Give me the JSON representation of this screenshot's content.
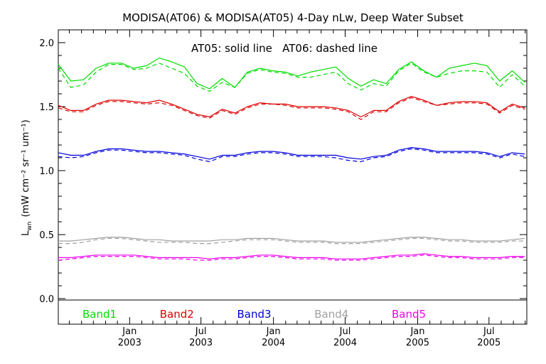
{
  "chart_data": {
    "type": "line",
    "title": "MODISA(AT06) & MODISA(AT05) 4-Day nLw, Deep Water Subset",
    "annotation": "AT05: solid line   AT06: dashed line",
    "ylabel": "L",
    "ylabel_subscript": "wn",
    "ylabel_units": "(mW cm⁻² sr⁻¹ um⁻¹)",
    "ylim": [
      -0.2,
      2.1
    ],
    "xlim": [
      "2002-07-04",
      "2005-10-05"
    ],
    "grid": false,
    "y_ticks": [
      0.0,
      0.5,
      1.0,
      1.5,
      2.0
    ],
    "y_tick_labels": [
      "0.0",
      "0.5",
      "1.0",
      "1.5",
      "2.0"
    ],
    "x_ticks": [
      {
        "date": "2003-01-01",
        "month": "Jan",
        "year": "2003"
      },
      {
        "date": "2003-07-01",
        "month": "Jul",
        "year": "2003"
      },
      {
        "date": "2004-01-01",
        "month": "Jan",
        "year": "2004"
      },
      {
        "date": "2004-07-01",
        "month": "Jul",
        "year": "2004"
      },
      {
        "date": "2005-01-01",
        "month": "Jan",
        "year": "2005"
      },
      {
        "date": "2005-07-01",
        "month": "Jul",
        "year": "2005"
      }
    ],
    "x": [
      "2002-07-04",
      "2002-08-05",
      "2002-09-06",
      "2002-10-08",
      "2002-11-09",
      "2002-12-11",
      "2003-01-12",
      "2003-02-13",
      "2003-03-17",
      "2003-04-18",
      "2003-05-20",
      "2003-06-21",
      "2003-07-23",
      "2003-08-24",
      "2003-09-25",
      "2003-10-27",
      "2003-11-28",
      "2003-12-30",
      "2004-01-31",
      "2004-03-03",
      "2004-04-04",
      "2004-05-06",
      "2004-06-07",
      "2004-07-09",
      "2004-08-10",
      "2004-09-11",
      "2004-10-13",
      "2004-11-14",
      "2004-12-16",
      "2005-01-17",
      "2005-02-18",
      "2005-03-22",
      "2005-04-23",
      "2005-05-25",
      "2005-06-26",
      "2005-07-28",
      "2005-08-29",
      "2005-09-30"
    ],
    "series": [
      {
        "name": "Band1",
        "sensor": "AT05",
        "style": "solid",
        "color": "#00dd00",
        "values": [
          1.83,
          1.7,
          1.71,
          1.8,
          1.84,
          1.84,
          1.8,
          1.82,
          1.88,
          1.85,
          1.81,
          1.68,
          1.64,
          1.72,
          1.65,
          1.77,
          1.8,
          1.78,
          1.77,
          1.74,
          1.77,
          1.79,
          1.81,
          1.72,
          1.66,
          1.71,
          1.68,
          1.79,
          1.85,
          1.78,
          1.73,
          1.8,
          1.82,
          1.84,
          1.82,
          1.7,
          1.78,
          1.69
        ]
      },
      {
        "name": "Band1",
        "sensor": "AT06",
        "style": "dashed",
        "color": "#00dd00",
        "values": [
          1.8,
          1.65,
          1.67,
          1.77,
          1.83,
          1.83,
          1.79,
          1.8,
          1.84,
          1.8,
          1.76,
          1.66,
          1.62,
          1.69,
          1.65,
          1.76,
          1.79,
          1.77,
          1.76,
          1.73,
          1.73,
          1.75,
          1.77,
          1.68,
          1.63,
          1.68,
          1.66,
          1.78,
          1.84,
          1.77,
          1.73,
          1.76,
          1.78,
          1.78,
          1.77,
          1.65,
          1.75,
          1.66
        ]
      },
      {
        "name": "Band2",
        "sensor": "AT05",
        "style": "solid",
        "color": "#dd0000",
        "values": [
          1.51,
          1.47,
          1.47,
          1.52,
          1.55,
          1.55,
          1.54,
          1.53,
          1.55,
          1.52,
          1.48,
          1.44,
          1.42,
          1.48,
          1.45,
          1.5,
          1.53,
          1.52,
          1.52,
          1.5,
          1.5,
          1.5,
          1.49,
          1.47,
          1.42,
          1.47,
          1.47,
          1.54,
          1.58,
          1.55,
          1.51,
          1.53,
          1.54,
          1.54,
          1.53,
          1.46,
          1.52,
          1.49
        ]
      },
      {
        "name": "Band2",
        "sensor": "AT06",
        "style": "dashed",
        "color": "#dd0000",
        "values": [
          1.49,
          1.46,
          1.46,
          1.51,
          1.54,
          1.54,
          1.53,
          1.52,
          1.53,
          1.51,
          1.47,
          1.43,
          1.41,
          1.47,
          1.44,
          1.49,
          1.52,
          1.52,
          1.51,
          1.49,
          1.49,
          1.49,
          1.48,
          1.46,
          1.4,
          1.46,
          1.46,
          1.53,
          1.57,
          1.54,
          1.51,
          1.52,
          1.53,
          1.53,
          1.52,
          1.45,
          1.51,
          1.48
        ]
      },
      {
        "name": "Band3",
        "sensor": "AT05",
        "style": "solid",
        "color": "#0000dd",
        "values": [
          1.14,
          1.12,
          1.12,
          1.15,
          1.17,
          1.17,
          1.16,
          1.15,
          1.15,
          1.14,
          1.13,
          1.11,
          1.09,
          1.12,
          1.12,
          1.14,
          1.15,
          1.15,
          1.14,
          1.12,
          1.12,
          1.12,
          1.12,
          1.1,
          1.09,
          1.11,
          1.12,
          1.16,
          1.18,
          1.17,
          1.15,
          1.15,
          1.15,
          1.15,
          1.14,
          1.11,
          1.14,
          1.13
        ]
      },
      {
        "name": "Band3",
        "sensor": "AT06",
        "style": "dashed",
        "color": "#0000dd",
        "values": [
          1.11,
          1.1,
          1.11,
          1.14,
          1.16,
          1.16,
          1.15,
          1.14,
          1.14,
          1.13,
          1.12,
          1.09,
          1.07,
          1.11,
          1.11,
          1.13,
          1.14,
          1.14,
          1.13,
          1.11,
          1.11,
          1.11,
          1.1,
          1.08,
          1.07,
          1.1,
          1.11,
          1.15,
          1.17,
          1.16,
          1.14,
          1.14,
          1.14,
          1.14,
          1.13,
          1.1,
          1.13,
          1.11
        ]
      },
      {
        "name": "Band4",
        "sensor": "AT05",
        "style": "solid",
        "color": "#a0a0a0",
        "values": [
          0.45,
          0.45,
          0.46,
          0.47,
          0.48,
          0.48,
          0.47,
          0.46,
          0.46,
          0.45,
          0.45,
          0.45,
          0.45,
          0.46,
          0.46,
          0.47,
          0.47,
          0.47,
          0.46,
          0.45,
          0.45,
          0.45,
          0.44,
          0.44,
          0.44,
          0.45,
          0.46,
          0.47,
          0.48,
          0.48,
          0.47,
          0.46,
          0.46,
          0.45,
          0.45,
          0.45,
          0.46,
          0.47
        ]
      },
      {
        "name": "Band4",
        "sensor": "AT06",
        "style": "dashed",
        "color": "#a0a0a0",
        "values": [
          0.43,
          0.43,
          0.44,
          0.46,
          0.47,
          0.47,
          0.46,
          0.45,
          0.44,
          0.44,
          0.44,
          0.43,
          0.43,
          0.44,
          0.45,
          0.46,
          0.46,
          0.46,
          0.45,
          0.44,
          0.44,
          0.44,
          0.43,
          0.43,
          0.43,
          0.44,
          0.45,
          0.46,
          0.47,
          0.47,
          0.46,
          0.45,
          0.45,
          0.44,
          0.44,
          0.44,
          0.45,
          0.45
        ]
      },
      {
        "name": "Band5",
        "sensor": "AT05",
        "style": "solid",
        "color": "#ee00ee",
        "values": [
          0.32,
          0.32,
          0.33,
          0.34,
          0.34,
          0.34,
          0.34,
          0.33,
          0.32,
          0.32,
          0.32,
          0.32,
          0.31,
          0.32,
          0.32,
          0.33,
          0.34,
          0.34,
          0.33,
          0.32,
          0.32,
          0.32,
          0.31,
          0.31,
          0.31,
          0.32,
          0.33,
          0.34,
          0.34,
          0.35,
          0.34,
          0.33,
          0.33,
          0.32,
          0.32,
          0.32,
          0.33,
          0.33
        ]
      },
      {
        "name": "Band5",
        "sensor": "AT06",
        "style": "dashed",
        "color": "#ee00ee",
        "values": [
          0.3,
          0.31,
          0.32,
          0.33,
          0.33,
          0.33,
          0.33,
          0.32,
          0.31,
          0.31,
          0.31,
          0.3,
          0.3,
          0.31,
          0.31,
          0.32,
          0.33,
          0.33,
          0.32,
          0.31,
          0.31,
          0.31,
          0.3,
          0.3,
          0.3,
          0.31,
          0.32,
          0.33,
          0.33,
          0.34,
          0.33,
          0.32,
          0.32,
          0.31,
          0.31,
          0.31,
          0.32,
          0.32
        ]
      }
    ],
    "legend": [
      {
        "label": "Band1",
        "color": "#00dd00"
      },
      {
        "label": "Band2",
        "color": "#dd0000"
      },
      {
        "label": "Band3",
        "color": "#0000dd"
      },
      {
        "label": "Band4",
        "color": "#a0a0a0"
      },
      {
        "label": "Band5",
        "color": "#ee00ee"
      }
    ],
    "legend_placement": "bottom"
  }
}
